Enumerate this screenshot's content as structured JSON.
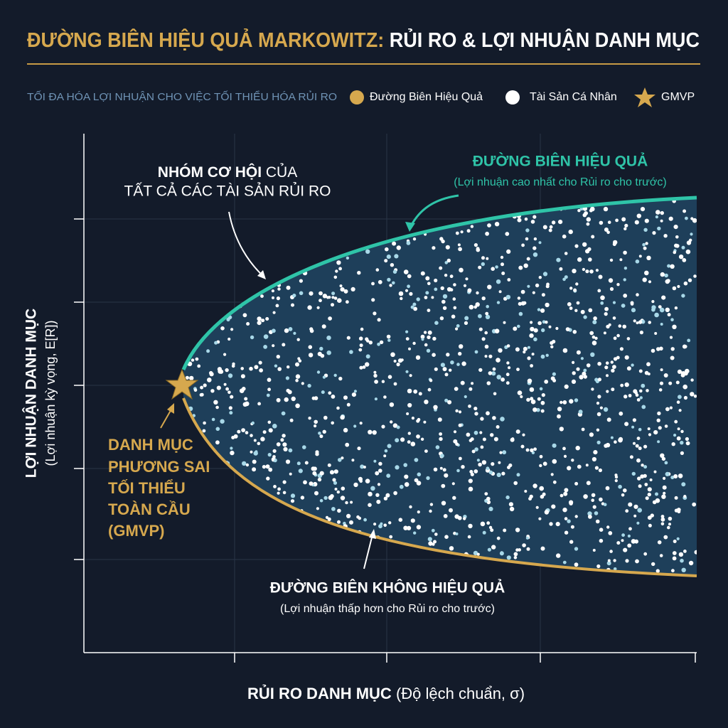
{
  "header": {
    "title_lead": "ĐƯỜNG BIÊN HIỆU QUẢ MARKOWITZ:",
    "title_rest": "RỦI RO & LỢI NHUẬN DANH MỤC",
    "subtitle": "TỐI ĐA HÓA LỢI NHUẬN CHO VIỆC TỐI THIỂU HÓA RỦI RO"
  },
  "legend": [
    "Đường Biên Hiệu Quả",
    "Tài Sản Cá Nhân",
    "GMVP"
  ],
  "annotations": {
    "opportunity": {
      "bold": "NHÓM CƠ HỘI",
      "rest": "CỦA",
      "line2": "TẤT CẢ CÁC TÀI SẢN RỦI RO"
    },
    "efficient": {
      "title": "ĐƯỜNG BIÊN HIỆU QUẢ",
      "note": "(Lợi nhuận cao nhất cho Rủi ro cho trước)"
    },
    "gmvp": [
      "DANH MỤC",
      "PHƯƠNG SAI",
      "TỐI THIỂU",
      "TOÀN CẦU",
      "(GMVP)"
    ],
    "inefficient": {
      "title": "ĐƯỜNG BIÊN KHÔNG HIỆU QUẢ",
      "note": "(Lợi nhuận thấp hơn cho Rủi ro cho trước)"
    }
  },
  "axes": {
    "y_title": "LỢI NHUẬN DANH MỤC",
    "y_note": "(Lợi nhuận kỳ vọng, E[R])",
    "x_title": "RỦI RO DANH MỤC",
    "x_note": "(Độ lệch chuẩn, σ)"
  }
}
